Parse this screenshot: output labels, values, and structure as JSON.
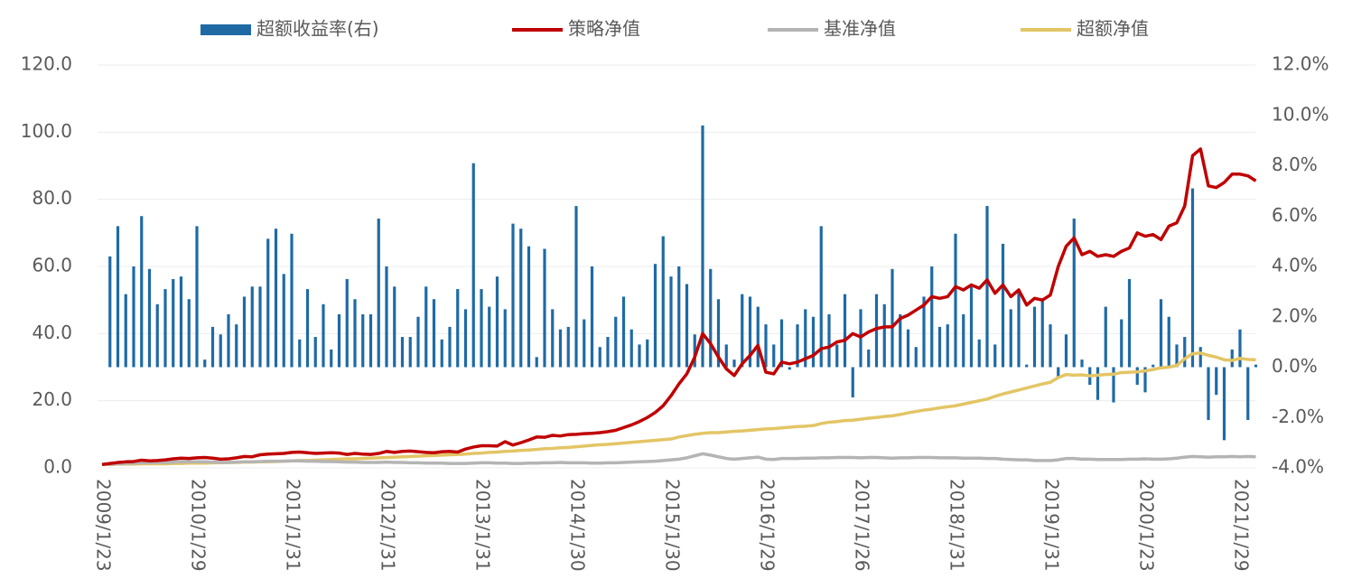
{
  "chart_data": {
    "type": "combo",
    "categories": [
      "2009/1/23",
      null,
      null,
      null,
      null,
      null,
      null,
      null,
      null,
      null,
      null,
      null,
      "2010/1/29",
      null,
      null,
      null,
      null,
      null,
      null,
      null,
      null,
      null,
      null,
      null,
      "2011/1/31",
      null,
      null,
      null,
      null,
      null,
      null,
      null,
      null,
      null,
      null,
      null,
      "2012/1/31",
      null,
      null,
      null,
      null,
      null,
      null,
      null,
      null,
      null,
      null,
      null,
      "2013/1/31",
      null,
      null,
      null,
      null,
      null,
      null,
      null,
      null,
      null,
      null,
      null,
      "2014/1/30",
      null,
      null,
      null,
      null,
      null,
      null,
      null,
      null,
      null,
      null,
      null,
      "2015/1/30",
      null,
      null,
      null,
      null,
      null,
      null,
      null,
      null,
      null,
      null,
      null,
      "2016/1/29",
      null,
      null,
      null,
      null,
      null,
      null,
      null,
      null,
      null,
      null,
      null,
      "2017/1/26",
      null,
      null,
      null,
      null,
      null,
      null,
      null,
      null,
      null,
      null,
      null,
      "2018/1/31",
      null,
      null,
      null,
      null,
      null,
      null,
      null,
      null,
      null,
      null,
      null,
      "2019/1/31",
      null,
      null,
      null,
      null,
      null,
      null,
      null,
      null,
      null,
      null,
      null,
      "2020/1/23",
      null,
      null,
      null,
      null,
      null,
      null,
      null,
      null,
      null,
      null,
      null,
      "2021/1/29",
      null,
      null
    ],
    "series": [
      {
        "name": "超额收益率(右)",
        "type": "bar",
        "axis": "y2",
        "color": "#1f6aa5",
        "values": [
          null,
          4.4,
          5.6,
          2.9,
          4.0,
          6.0,
          3.9,
          2.5,
          3.1,
          3.5,
          3.6,
          2.7,
          5.6,
          0.3,
          1.6,
          1.3,
          2.1,
          1.7,
          2.8,
          3.2,
          3.2,
          5.1,
          5.5,
          3.7,
          5.3,
          1.1,
          3.1,
          1.2,
          2.5,
          0.7,
          2.1,
          3.5,
          2.7,
          2.1,
          2.1,
          5.9,
          4.0,
          3.2,
          1.2,
          1.2,
          2.0,
          3.2,
          2.7,
          1.1,
          1.6,
          3.1,
          2.3,
          8.1,
          3.1,
          2.4,
          3.6,
          2.3,
          5.7,
          5.5,
          4.8,
          0.4,
          4.7,
          2.3,
          1.5,
          1.6,
          6.4,
          1.9,
          4.0,
          0.8,
          1.2,
          2.0,
          2.8,
          1.5,
          0.9,
          1.1,
          4.1,
          5.2,
          3.6,
          4.0,
          3.3,
          1.3,
          9.6,
          3.9,
          2.7,
          0.9,
          0.3,
          2.9,
          2.8,
          2.4,
          1.7,
          0.9,
          1.9,
          -0.1,
          1.7,
          2.3,
          2.0,
          5.6,
          2.1,
          0.9,
          2.9,
          -1.2,
          2.3,
          0.7,
          2.9,
          2.5,
          3.9,
          2.1,
          1.5,
          0.8,
          2.8,
          4.0,
          1.6,
          1.7,
          5.3,
          2.1,
          3.2,
          1.1,
          6.4,
          0.9,
          4.9,
          2.3,
          3.1,
          0.1,
          2.4,
          2.7,
          1.7,
          -0.4,
          1.3,
          5.9,
          0.3,
          -0.7,
          -1.3,
          2.4,
          -1.4,
          1.9,
          3.5,
          -0.7,
          -1.0,
          0.1,
          2.7,
          2.0,
          0.9,
          1.2,
          7.1,
          0.8,
          -2.1,
          -1.1,
          -2.9,
          0.7,
          1.5,
          -2.1,
          0.1
        ]
      },
      {
        "name": "策略净值",
        "type": "line",
        "color": "#c00000",
        "values": [
          1.0,
          1.3,
          1.6,
          1.8,
          1.9,
          2.3,
          2.1,
          2.2,
          2.4,
          2.7,
          2.9,
          2.8,
          3.0,
          3.1,
          2.9,
          2.6,
          2.7,
          3.0,
          3.4,
          3.3,
          3.9,
          4.1,
          4.2,
          4.3,
          4.6,
          4.7,
          4.5,
          4.3,
          4.4,
          4.5,
          4.4,
          4.0,
          4.3,
          4.1,
          4.0,
          4.3,
          4.9,
          4.6,
          4.9,
          5.0,
          4.8,
          4.6,
          4.5,
          4.8,
          4.9,
          4.7,
          5.6,
          6.2,
          6.6,
          6.6,
          6.5,
          7.8,
          6.8,
          7.5,
          8.3,
          9.2,
          9.1,
          9.7,
          9.5,
          9.9,
          10.0,
          10.2,
          10.3,
          10.5,
          10.8,
          11.2,
          12.0,
          12.8,
          13.8,
          15.0,
          16.5,
          18.5,
          21.5,
          25.0,
          28.0,
          33.0,
          40.0,
          37.0,
          33.0,
          29.5,
          27.5,
          31.0,
          33.5,
          36.5,
          28.5,
          28.0,
          31.5,
          31.0,
          31.5,
          32.5,
          33.5,
          35.5,
          36.0,
          37.5,
          38.0,
          40.0,
          39.0,
          40.5,
          41.5,
          42.0,
          42.0,
          44.5,
          45.5,
          47.0,
          48.5,
          51.0,
          50.5,
          51.0,
          54.0,
          53.0,
          54.5,
          53.5,
          56.0,
          52.0,
          54.5,
          51.0,
          53.0,
          48.5,
          50.5,
          50.0,
          51.5,
          60.0,
          66.0,
          68.5,
          63.5,
          64.5,
          63.0,
          63.5,
          63.0,
          64.5,
          65.5,
          70.0,
          69.0,
          69.5,
          68.0,
          72.0,
          73.0,
          78.0,
          93.0,
          95.0,
          84.0,
          83.5,
          85.0,
          87.5,
          87.5,
          87.0,
          85.5
        ]
      },
      {
        "name": "基准净值",
        "type": "line",
        "color": "#b4b4b4",
        "values": [
          1.0,
          1.1,
          1.2,
          1.3,
          1.4,
          1.5,
          1.5,
          1.6,
          1.6,
          1.7,
          1.8,
          1.8,
          1.8,
          1.8,
          1.7,
          1.6,
          1.6,
          1.7,
          1.8,
          1.8,
          1.9,
          2.0,
          2.0,
          2.0,
          2.1,
          2.1,
          2.0,
          2.0,
          1.9,
          1.9,
          1.8,
          1.7,
          1.7,
          1.6,
          1.6,
          1.6,
          1.7,
          1.6,
          1.6,
          1.5,
          1.5,
          1.4,
          1.4,
          1.4,
          1.3,
          1.3,
          1.3,
          1.4,
          1.5,
          1.5,
          1.4,
          1.4,
          1.3,
          1.3,
          1.4,
          1.4,
          1.5,
          1.5,
          1.6,
          1.5,
          1.5,
          1.5,
          1.4,
          1.4,
          1.5,
          1.5,
          1.6,
          1.7,
          1.8,
          1.9,
          2.0,
          2.2,
          2.4,
          2.6,
          3.0,
          3.6,
          4.2,
          3.8,
          3.3,
          2.8,
          2.6,
          2.8,
          3.0,
          3.2,
          2.6,
          2.5,
          2.8,
          2.8,
          2.8,
          2.9,
          2.9,
          3.0,
          3.0,
          3.1,
          3.1,
          3.1,
          3.0,
          3.1,
          3.1,
          3.0,
          2.9,
          3.0,
          3.0,
          3.1,
          3.1,
          3.1,
          3.0,
          3.0,
          3.0,
          2.9,
          2.9,
          2.9,
          2.8,
          2.8,
          2.6,
          2.5,
          2.4,
          2.4,
          2.2,
          2.2,
          2.2,
          2.4,
          2.8,
          2.8,
          2.6,
          2.6,
          2.5,
          2.5,
          2.5,
          2.5,
          2.6,
          2.6,
          2.7,
          2.6,
          2.6,
          2.7,
          2.9,
          3.2,
          3.4,
          3.3,
          3.2,
          3.3,
          3.3,
          3.4,
          3.3,
          3.4,
          3.3
        ]
      },
      {
        "name": "超额净值",
        "type": "line",
        "color": "#e3c565",
        "values": [
          1.0,
          1.0,
          1.1,
          1.1,
          1.1,
          1.2,
          1.2,
          1.2,
          1.2,
          1.3,
          1.3,
          1.4,
          1.4,
          1.4,
          1.5,
          1.5,
          1.6,
          1.6,
          1.7,
          1.7,
          1.8,
          1.8,
          1.9,
          2.0,
          2.1,
          2.2,
          2.2,
          2.3,
          2.4,
          2.5,
          2.6,
          2.7,
          2.7,
          2.8,
          2.9,
          3.0,
          3.1,
          3.2,
          3.3,
          3.4,
          3.5,
          3.6,
          3.7,
          3.8,
          3.9,
          4.0,
          4.1,
          4.3,
          4.4,
          4.6,
          4.7,
          4.9,
          5.0,
          5.2,
          5.3,
          5.5,
          5.7,
          5.8,
          6.0,
          6.1,
          6.3,
          6.5,
          6.7,
          6.9,
          7.0,
          7.2,
          7.4,
          7.6,
          7.8,
          8.0,
          8.2,
          8.4,
          8.6,
          9.2,
          9.6,
          10.0,
          10.3,
          10.5,
          10.5,
          10.7,
          10.9,
          11.0,
          11.2,
          11.4,
          11.6,
          11.7,
          11.9,
          12.1,
          12.3,
          12.4,
          12.6,
          13.2,
          13.6,
          13.8,
          14.1,
          14.2,
          14.5,
          14.8,
          15.0,
          15.3,
          15.5,
          15.9,
          16.4,
          16.8,
          17.2,
          17.5,
          17.9,
          18.2,
          18.5,
          19.0,
          19.5,
          20.0,
          20.5,
          21.3,
          22.0,
          22.6,
          23.2,
          23.8,
          24.4,
          25.0,
          25.5,
          26.9,
          27.8,
          27.6,
          27.7,
          27.4,
          27.6,
          27.8,
          27.9,
          28.4,
          28.5,
          28.6,
          28.9,
          29.3,
          29.8,
          30.0,
          30.5,
          32.5,
          34.0,
          34.2,
          33.5,
          33.0,
          32.2,
          32.0,
          32.6,
          32.3,
          32.2
        ]
      }
    ],
    "ylim": [
      0,
      120
    ],
    "yticks": [
      {
        "value": 0,
        "label": "0.0"
      },
      {
        "value": 20,
        "label": "20.0"
      },
      {
        "value": 40,
        "label": "40.0"
      },
      {
        "value": 60,
        "label": "60.0"
      },
      {
        "value": 80,
        "label": "80.0"
      },
      {
        "value": 100,
        "label": "100.0"
      },
      {
        "value": 120,
        "label": "120.0"
      }
    ],
    "y2lim": [
      -4,
      12
    ],
    "y2ticks": [
      {
        "value": -4,
        "label": "-4.0%"
      },
      {
        "value": -2,
        "label": "-2.0%"
      },
      {
        "value": 0,
        "label": "0.0%"
      },
      {
        "value": 2,
        "label": "2.0%"
      },
      {
        "value": 4,
        "label": "4.0%"
      },
      {
        "value": 6,
        "label": "6.0%"
      },
      {
        "value": 8,
        "label": "8.0%"
      },
      {
        "value": 10,
        "label": "10.0%"
      },
      {
        "value": 12,
        "label": "12.0%"
      }
    ],
    "grid": true,
    "legend": "top"
  }
}
